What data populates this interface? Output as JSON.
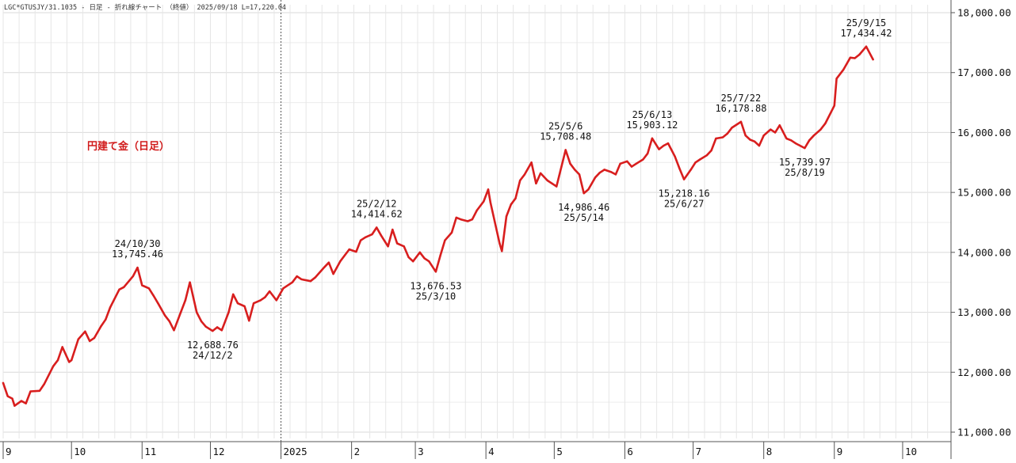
{
  "header": {
    "text": "LGC*GTUSJY/31.1035 - 日足 - 折れ線チャート （終値） 2025/09/18 L=17,220.04"
  },
  "colors": {
    "line": "#d81e1e",
    "grid": "#d9d9d9",
    "axis": "#555555",
    "subtitle": "#d11a1a",
    "divider": "#555555"
  },
  "chart_data": {
    "type": "line",
    "subtitle": "円建て金（日足）",
    "ylim": [
      11000,
      18000
    ],
    "y_ticks": [
      11000,
      12000,
      13000,
      14000,
      15000,
      16000,
      17000,
      18000
    ],
    "y_tick_labels": [
      "11,000.00",
      "12,000.00",
      "13,000.00",
      "14,000.00",
      "15,000.00",
      "16,000.00",
      "17,000.00",
      "18,000.00"
    ],
    "x_tick_labels": [
      "9",
      "10",
      "11",
      "12",
      "2025",
      "2",
      "3",
      "4",
      "5",
      "6",
      "7",
      "8",
      "9",
      "10"
    ],
    "x_tick_dates": [
      "2024-09-01",
      "2024-10-01",
      "2024-11-01",
      "2024-12-01",
      "2025-01-01",
      "2025-02-01",
      "2025-03-01",
      "2025-04-01",
      "2025-05-01",
      "2025-06-01",
      "2025-07-01",
      "2025-08-01",
      "2025-09-01",
      "2025-10-01"
    ],
    "year_divider_date": "2025-01-01",
    "grid": true,
    "series": [
      {
        "points": [
          [
            "2024-09-01",
            11820
          ],
          [
            "2024-09-03",
            11600
          ],
          [
            "2024-09-05",
            11560
          ],
          [
            "2024-09-06",
            11440
          ],
          [
            "2024-09-09",
            11520
          ],
          [
            "2024-09-11",
            11480
          ],
          [
            "2024-09-13",
            11680
          ],
          [
            "2024-09-17",
            11690
          ],
          [
            "2024-09-19",
            11800
          ],
          [
            "2024-09-23",
            12100
          ],
          [
            "2024-09-25",
            12200
          ],
          [
            "2024-09-27",
            12420
          ],
          [
            "2024-09-30",
            12170
          ],
          [
            "2024-10-01",
            12200
          ],
          [
            "2024-10-04",
            12550
          ],
          [
            "2024-10-07",
            12680
          ],
          [
            "2024-10-09",
            12520
          ],
          [
            "2024-10-11",
            12570
          ],
          [
            "2024-10-14",
            12770
          ],
          [
            "2024-10-16",
            12880
          ],
          [
            "2024-10-18",
            13080
          ],
          [
            "2024-10-22",
            13380
          ],
          [
            "2024-10-24",
            13420
          ],
          [
            "2024-10-28",
            13600
          ],
          [
            "2024-10-30",
            13745.46
          ],
          [
            "2024-11-01",
            13450
          ],
          [
            "2024-11-04",
            13400
          ],
          [
            "2024-11-06",
            13280
          ],
          [
            "2024-11-08",
            13150
          ],
          [
            "2024-11-11",
            12950
          ],
          [
            "2024-11-13",
            12850
          ],
          [
            "2024-11-15",
            12700
          ],
          [
            "2024-11-18",
            13000
          ],
          [
            "2024-11-20",
            13200
          ],
          [
            "2024-11-22",
            13500
          ],
          [
            "2024-11-25",
            13000
          ],
          [
            "2024-11-27",
            12850
          ],
          [
            "2024-11-29",
            12760
          ],
          [
            "2024-12-02",
            12688.76
          ],
          [
            "2024-12-04",
            12750
          ],
          [
            "2024-12-06",
            12700
          ],
          [
            "2024-12-09",
            13000
          ],
          [
            "2024-12-11",
            13300
          ],
          [
            "2024-12-13",
            13150
          ],
          [
            "2024-12-16",
            13100
          ],
          [
            "2024-12-18",
            12860
          ],
          [
            "2024-12-20",
            13150
          ],
          [
            "2024-12-23",
            13200
          ],
          [
            "2024-12-25",
            13250
          ],
          [
            "2024-12-27",
            13350
          ],
          [
            "2024-12-30",
            13200
          ],
          [
            "2025-01-02",
            13400
          ],
          [
            "2025-01-06",
            13500
          ],
          [
            "2025-01-08",
            13600
          ],
          [
            "2025-01-10",
            13550
          ],
          [
            "2025-01-14",
            13520
          ],
          [
            "2025-01-16",
            13580
          ],
          [
            "2025-01-20",
            13750
          ],
          [
            "2025-01-22",
            13830
          ],
          [
            "2025-01-24",
            13640
          ],
          [
            "2025-01-27",
            13850
          ],
          [
            "2025-01-29",
            13950
          ],
          [
            "2025-01-31",
            14050
          ],
          [
            "2025-02-03",
            14010
          ],
          [
            "2025-02-05",
            14200
          ],
          [
            "2025-02-07",
            14250
          ],
          [
            "2025-02-10",
            14300
          ],
          [
            "2025-02-12",
            14414.62
          ],
          [
            "2025-02-14",
            14280
          ],
          [
            "2025-02-17",
            14100
          ],
          [
            "2025-02-19",
            14380
          ],
          [
            "2025-02-21",
            14150
          ],
          [
            "2025-02-24",
            14100
          ],
          [
            "2025-02-26",
            13920
          ],
          [
            "2025-02-28",
            13850
          ],
          [
            "2025-03-03",
            14000
          ],
          [
            "2025-03-05",
            13900
          ],
          [
            "2025-03-07",
            13850
          ],
          [
            "2025-03-10",
            13676.53
          ],
          [
            "2025-03-12",
            13950
          ],
          [
            "2025-03-14",
            14200
          ],
          [
            "2025-03-17",
            14330
          ],
          [
            "2025-03-19",
            14580
          ],
          [
            "2025-03-21",
            14550
          ],
          [
            "2025-03-24",
            14520
          ],
          [
            "2025-03-26",
            14550
          ],
          [
            "2025-03-28",
            14700
          ],
          [
            "2025-03-31",
            14850
          ],
          [
            "2025-04-02",
            15050
          ],
          [
            "2025-04-03",
            14830
          ],
          [
            "2025-04-07",
            14150
          ],
          [
            "2025-04-08",
            14020
          ],
          [
            "2025-04-10",
            14600
          ],
          [
            "2025-04-12",
            14800
          ],
          [
            "2025-04-14",
            14900
          ],
          [
            "2025-04-16",
            15200
          ],
          [
            "2025-04-18",
            15300
          ],
          [
            "2025-04-21",
            15500
          ],
          [
            "2025-04-23",
            15150
          ],
          [
            "2025-04-25",
            15320
          ],
          [
            "2025-04-28",
            15200
          ],
          [
            "2025-04-30",
            15150
          ],
          [
            "2025-05-02",
            15100
          ],
          [
            "2025-05-06",
            15708.48
          ],
          [
            "2025-05-08",
            15480
          ],
          [
            "2025-05-10",
            15380
          ],
          [
            "2025-05-12",
            15300
          ],
          [
            "2025-05-14",
            14986.46
          ],
          [
            "2025-05-16",
            15050
          ],
          [
            "2025-05-19",
            15250
          ],
          [
            "2025-05-21",
            15330
          ],
          [
            "2025-05-23",
            15380
          ],
          [
            "2025-05-26",
            15340
          ],
          [
            "2025-05-28",
            15300
          ],
          [
            "2025-05-30",
            15480
          ],
          [
            "2025-06-02",
            15520
          ],
          [
            "2025-06-04",
            15430
          ],
          [
            "2025-06-06",
            15480
          ],
          [
            "2025-06-09",
            15550
          ],
          [
            "2025-06-11",
            15650
          ],
          [
            "2025-06-13",
            15903.12
          ],
          [
            "2025-06-16",
            15720
          ],
          [
            "2025-06-18",
            15780
          ],
          [
            "2025-06-20",
            15820
          ],
          [
            "2025-06-23",
            15600
          ],
          [
            "2025-06-25",
            15400
          ],
          [
            "2025-06-27",
            15218.16
          ],
          [
            "2025-06-30",
            15380
          ],
          [
            "2025-07-02",
            15500
          ],
          [
            "2025-07-04",
            15550
          ],
          [
            "2025-07-07",
            15620
          ],
          [
            "2025-07-09",
            15700
          ],
          [
            "2025-07-11",
            15900
          ],
          [
            "2025-07-14",
            15920
          ],
          [
            "2025-07-16",
            15980
          ],
          [
            "2025-07-18",
            16080
          ],
          [
            "2025-07-22",
            16178.88
          ],
          [
            "2025-07-24",
            15950
          ],
          [
            "2025-07-26",
            15880
          ],
          [
            "2025-07-28",
            15850
          ],
          [
            "2025-07-30",
            15780
          ],
          [
            "2025-08-01",
            15950
          ],
          [
            "2025-08-04",
            16050
          ],
          [
            "2025-08-06",
            16000
          ],
          [
            "2025-08-08",
            16120
          ],
          [
            "2025-08-11",
            15900
          ],
          [
            "2025-08-13",
            15870
          ],
          [
            "2025-08-15",
            15820
          ],
          [
            "2025-08-19",
            15739.97
          ],
          [
            "2025-08-21",
            15870
          ],
          [
            "2025-08-23",
            15950
          ],
          [
            "2025-08-26",
            16050
          ],
          [
            "2025-08-28",
            16150
          ],
          [
            "2025-09-01",
            16450
          ],
          [
            "2025-09-02",
            16900
          ],
          [
            "2025-09-05",
            17050
          ],
          [
            "2025-09-08",
            17250
          ],
          [
            "2025-09-10",
            17240
          ],
          [
            "2025-09-12",
            17300
          ],
          [
            "2025-09-15",
            17434.42
          ],
          [
            "2025-09-18",
            17220.04
          ]
        ]
      }
    ],
    "annotations": [
      {
        "date": "2024-10-30",
        "value": 13745.46,
        "label_date": "24/10/30",
        "label_value": "13,745.46",
        "placement": "above"
      },
      {
        "date": "2024-12-02",
        "value": 12688.76,
        "label_date": "24/12/2",
        "label_value": "12,688.76",
        "placement": "below"
      },
      {
        "date": "2025-02-12",
        "value": 14414.62,
        "label_date": "25/2/12",
        "label_value": "14,414.62",
        "placement": "above"
      },
      {
        "date": "2025-03-10",
        "value": 13676.53,
        "label_date": "25/3/10",
        "label_value": "13,676.53",
        "placement": "below"
      },
      {
        "date": "2025-05-06",
        "value": 15708.48,
        "label_date": "25/5/6",
        "label_value": "15,708.48",
        "placement": "above"
      },
      {
        "date": "2025-05-14",
        "value": 14986.46,
        "label_date": "25/5/14",
        "label_value": "14,986.46",
        "placement": "below"
      },
      {
        "date": "2025-06-13",
        "value": 15903.12,
        "label_date": "25/6/13",
        "label_value": "15,903.12",
        "placement": "above"
      },
      {
        "date": "2025-06-27",
        "value": 15218.16,
        "label_date": "25/6/27",
        "label_value": "15,218.16",
        "placement": "below"
      },
      {
        "date": "2025-07-22",
        "value": 16178.88,
        "label_date": "25/7/22",
        "label_value": "16,178.88",
        "placement": "above"
      },
      {
        "date": "2025-08-19",
        "value": 15739.97,
        "label_date": "25/8/19",
        "label_value": "15,739.97",
        "placement": "below"
      },
      {
        "date": "2025-09-15",
        "value": 17434.42,
        "label_date": "25/9/15",
        "label_value": "17,434.42",
        "placement": "above"
      }
    ]
  }
}
